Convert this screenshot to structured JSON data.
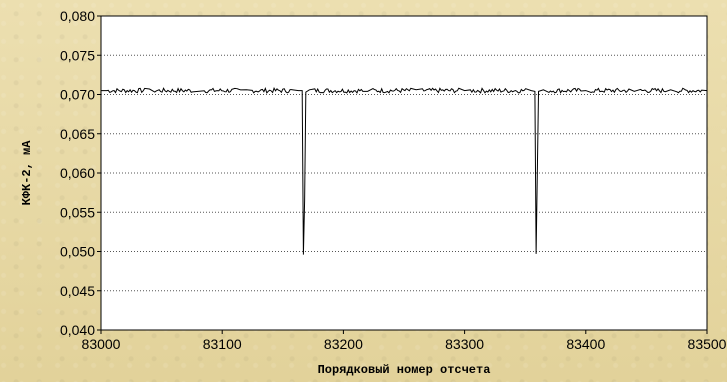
{
  "chart_data": {
    "type": "line",
    "title": "",
    "xlabel": "Порядковый номер отсчета",
    "ylabel": "КФК-2, мА",
    "xlim": [
      83000,
      83500
    ],
    "ylim": [
      0.04,
      0.08
    ],
    "x_ticks": [
      "83000",
      "83100",
      "83200",
      "83300",
      "83400",
      "83500"
    ],
    "y_ticks": [
      "0,080",
      "0,075",
      "0,070",
      "0,065",
      "0,060",
      "0,055",
      "0,050",
      "0,045",
      "0,040"
    ],
    "grid": "horizontal dotted",
    "baseline": 0.0705,
    "noise_amplitude": 0.0003,
    "series": [
      {
        "baseline": 0.0705,
        "points": [
          [
            83000,
            0.0705
          ],
          [
            83040,
            0.0707
          ],
          [
            83080,
            0.0704
          ],
          [
            83120,
            0.0706
          ],
          [
            83163,
            0.0705
          ],
          [
            83166,
            0.0705
          ],
          [
            83167,
            0.0496
          ],
          [
            83168,
            0.0565
          ],
          [
            83169,
            0.0703
          ],
          [
            83172,
            0.0706
          ],
          [
            83220,
            0.0704
          ],
          [
            83260,
            0.0706
          ],
          [
            83300,
            0.0705
          ],
          [
            83355,
            0.0705
          ],
          [
            83358,
            0.0704
          ],
          [
            83359,
            0.0497
          ],
          [
            83360,
            0.06
          ],
          [
            83361,
            0.0704
          ],
          [
            83365,
            0.0706
          ],
          [
            83400,
            0.0705
          ],
          [
            83440,
            0.0704
          ],
          [
            83470,
            0.0706
          ],
          [
            83500,
            0.0705
          ]
        ]
      }
    ]
  }
}
